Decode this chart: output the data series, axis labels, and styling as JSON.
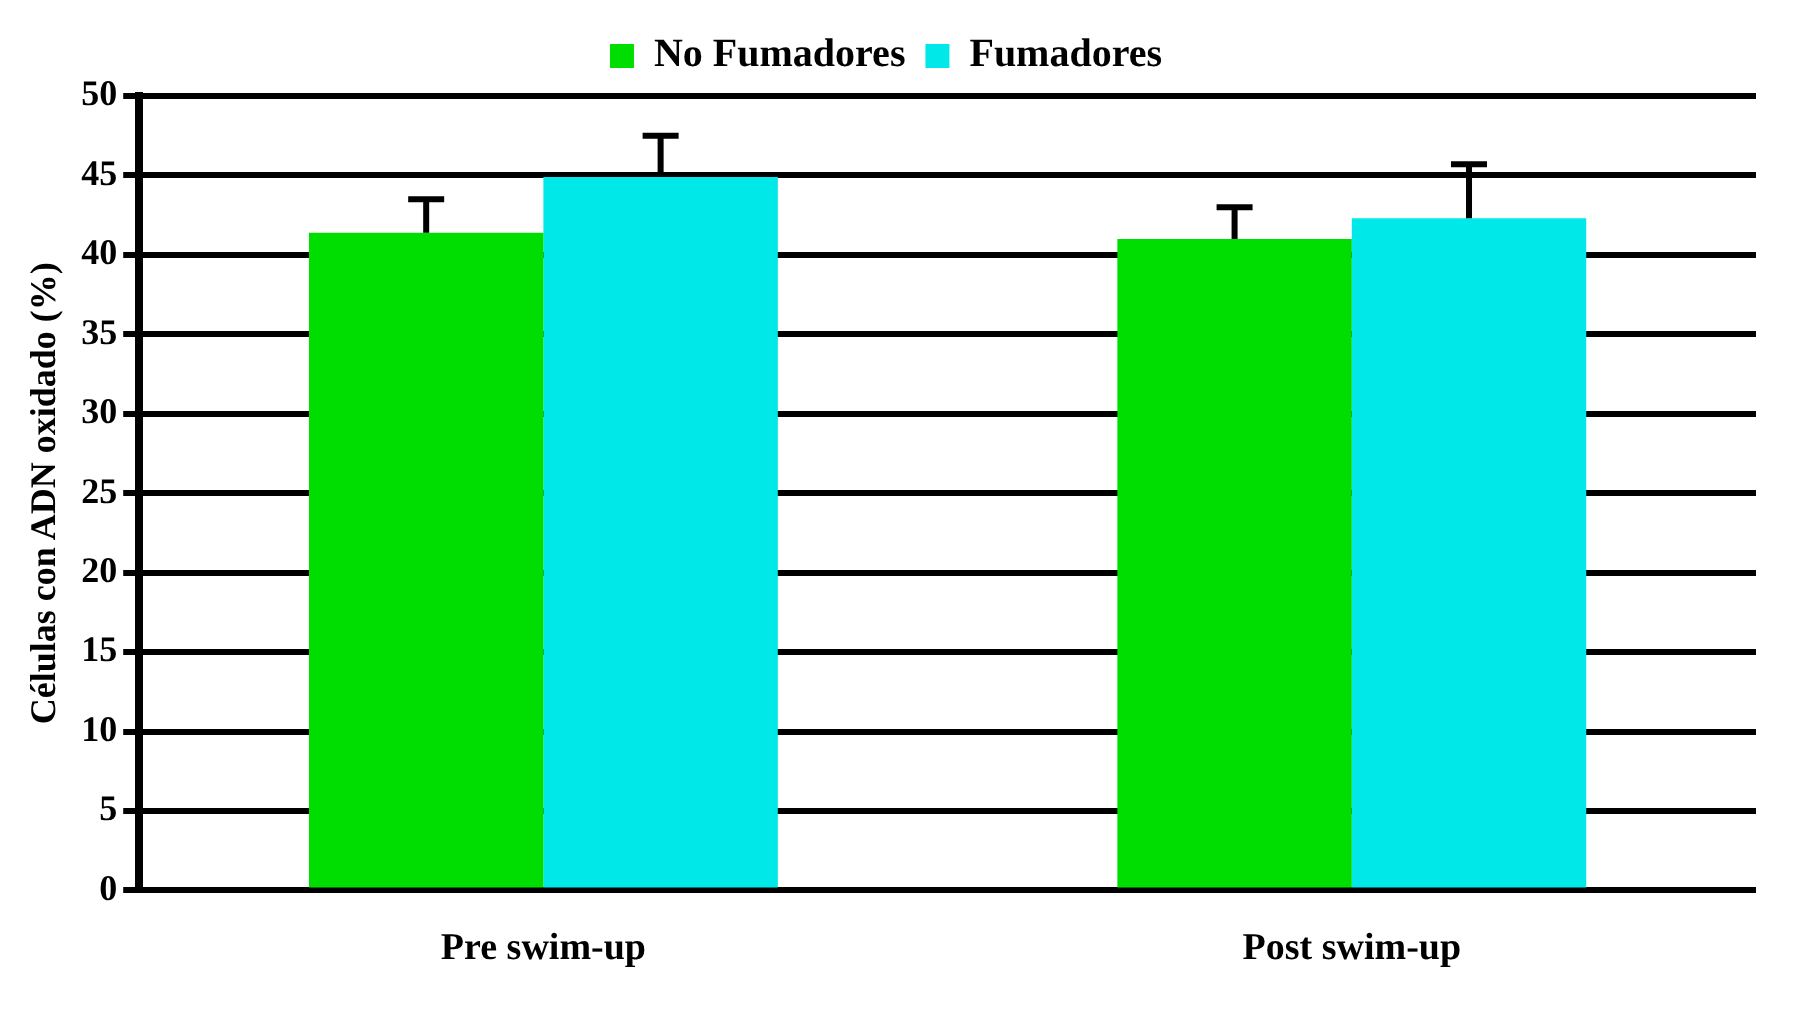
{
  "chart_data": {
    "type": "bar",
    "ylabel": "Células con ADN oxidado (%)",
    "categories": [
      "Pre swim-up",
      "Post swim-up"
    ],
    "series": [
      {
        "name": "No Fumadores",
        "color": "#00dd00",
        "values": [
          41.4,
          41.0
        ],
        "errors": [
          [
            41.4,
            43.5
          ],
          [
            41.0,
            43.0
          ]
        ]
      },
      {
        "name": "Fumadores",
        "color": "#00e8e8",
        "values": [
          44.9,
          42.3
        ],
        "errors": [
          [
            44.9,
            47.5
          ],
          [
            42.3,
            45.7
          ]
        ]
      }
    ],
    "ylim": [
      0,
      50
    ],
    "yticks": [
      0,
      5,
      10,
      15,
      20,
      25,
      30,
      35,
      40,
      45,
      50
    ],
    "grid": "y",
    "legend": "top"
  }
}
